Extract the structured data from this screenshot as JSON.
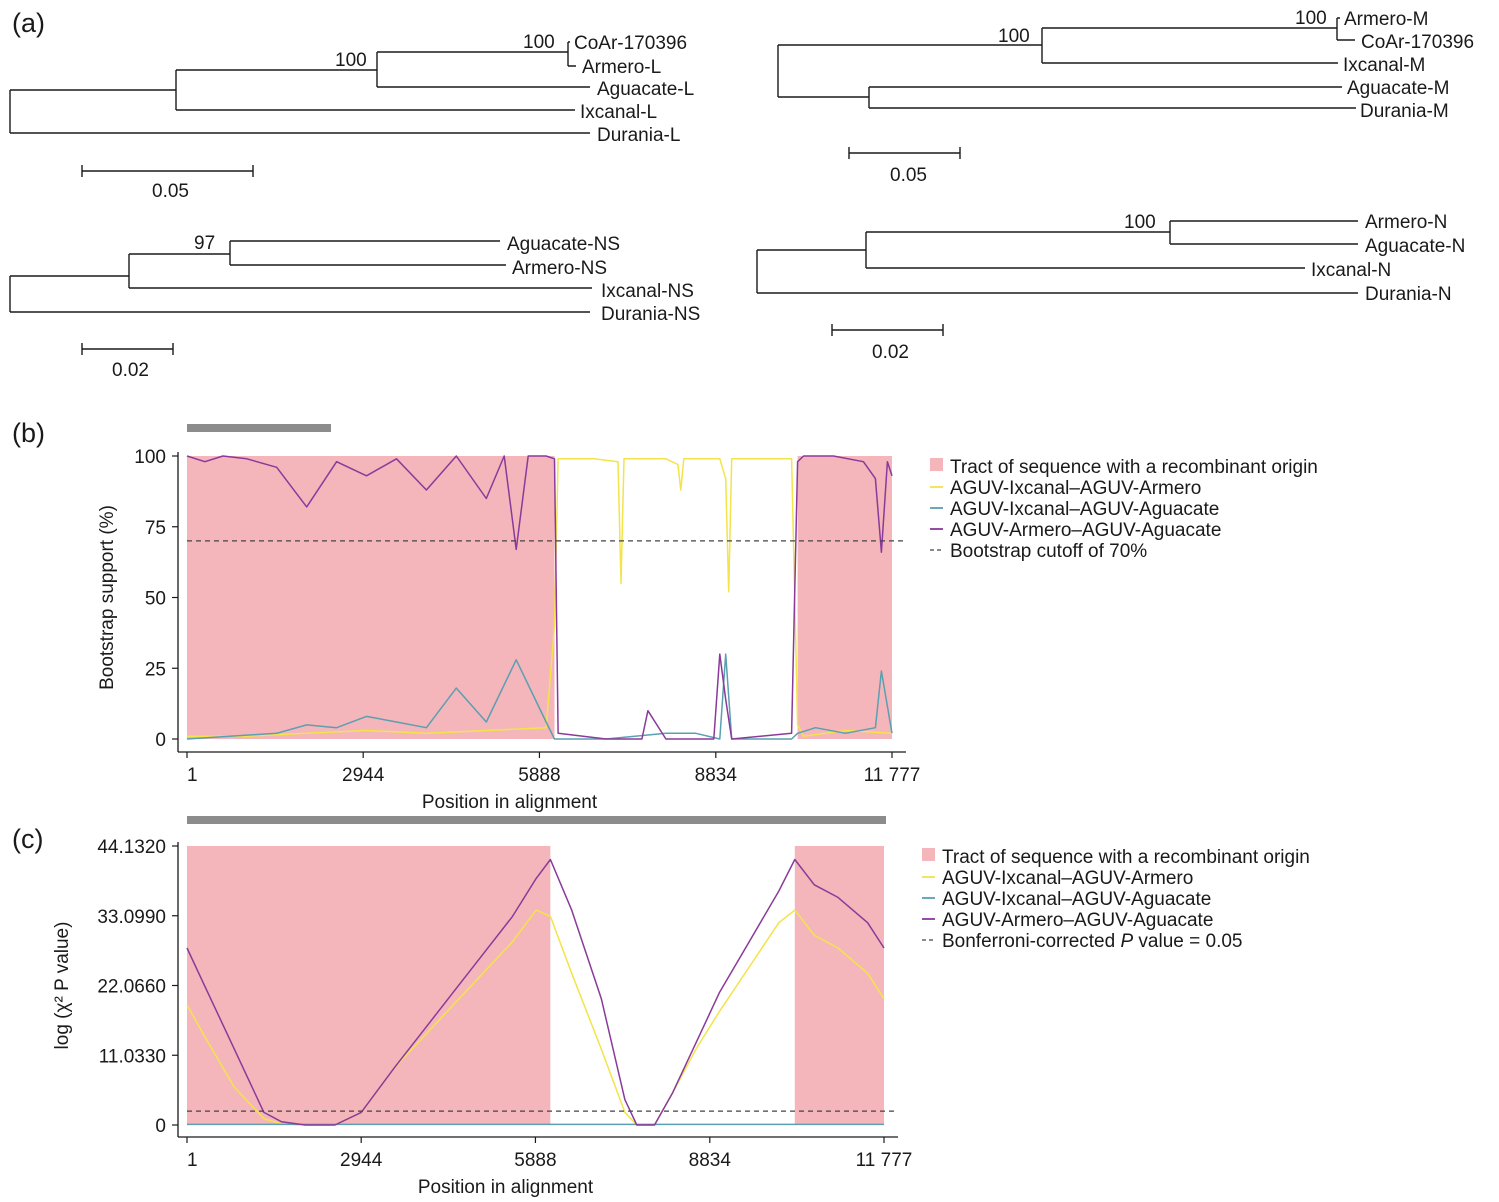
{
  "panel_labels": {
    "a": "(a)",
    "b": "(b)",
    "c": "(c)"
  },
  "trees": [
    {
      "name": "L",
      "leaves": [
        "CoAr-170396",
        "Armero-L",
        "Aguacate-L",
        "Ixcanal-L",
        "Durania-L"
      ],
      "bootstrap": [
        "100",
        "100"
      ],
      "scale_label": "0.05"
    },
    {
      "name": "M",
      "leaves": [
        "Armero-M",
        "CoAr-170396",
        "Ixcanal-M",
        "Aguacate-M",
        "Durania-M"
      ],
      "bootstrap": [
        "100",
        "100"
      ],
      "scale_label": "0.05"
    },
    {
      "name": "NS",
      "leaves": [
        "Aguacate-NS",
        "Armero-NS",
        "Ixcanal-NS",
        "Durania-NS"
      ],
      "bootstrap": [
        "97"
      ],
      "scale_label": "0.02"
    },
    {
      "name": "N",
      "leaves": [
        "Armero-N",
        "Aguacate-N",
        "Ixcanal-N",
        "Durania-N"
      ],
      "bootstrap": [
        "100"
      ],
      "scale_label": "0.02"
    }
  ],
  "chart_data": [
    {
      "type": "line",
      "panel": "b",
      "xlabel": "Position in alignment",
      "ylabel": "Bootstrap support (%)",
      "xlim": [
        1,
        11777
      ],
      "ylim": [
        0,
        100
      ],
      "x_ticks": [
        "1",
        "2944",
        "5888",
        "8834",
        "11 777"
      ],
      "x_tick_values": [
        1,
        2944,
        5888,
        8834,
        11777
      ],
      "y_ticks": [
        "0",
        "25",
        "50",
        "75",
        "100"
      ],
      "y_tick_values": [
        0,
        25,
        50,
        75,
        100
      ],
      "recombinant_tracts": [
        [
          1,
          6140
        ],
        [
          10200,
          11777
        ]
      ],
      "cutoff": 70,
      "colors": {
        "tract": "#f4b6bb",
        "ixcanal_armero": "#f2e44a",
        "ixcanal_aguacate": "#5b9fb0",
        "armero_aguacate": "#8a3a9a",
        "cutoff": "#444444"
      },
      "legend": [
        "Tract of sequence with a recombinant origin",
        "AGUV-Ixcanal–AGUV-Armero",
        "AGUV-Ixcanal–AGUV-Aguacate",
        "AGUV-Armero–AGUV-Aguacate",
        "Bootstrap cutoff of 70%"
      ],
      "series": [
        {
          "name": "AGUV-Ixcanal–AGUV-Armero",
          "x": [
            1,
            1000,
            2000,
            3000,
            4000,
            5000,
            6000,
            6140,
            6200,
            6800,
            7200,
            7250,
            7300,
            8000,
            8200,
            8250,
            8300,
            8900,
            9000,
            9050,
            9100,
            9500,
            10100,
            10200,
            10300,
            11000,
            11777
          ],
          "y": [
            1,
            1,
            2,
            3,
            2,
            3,
            4,
            40,
            99,
            99,
            98,
            55,
            99,
            99,
            97,
            88,
            99,
            99,
            92,
            52,
            99,
            99,
            99,
            5,
            1,
            3,
            2
          ]
        },
        {
          "name": "AGUV-Ixcanal–AGUV-Aguacate",
          "x": [
            1,
            1500,
            2000,
            2500,
            3000,
            3500,
            4000,
            4500,
            5000,
            5500,
            6000,
            6140,
            6300,
            7000,
            8000,
            8500,
            8900,
            9000,
            9100,
            9500,
            10100,
            10200,
            10500,
            11000,
            11500,
            11600,
            11777
          ],
          "y": [
            0,
            2,
            5,
            4,
            8,
            6,
            4,
            18,
            6,
            28,
            6,
            0,
            0,
            0,
            2,
            2,
            0,
            30,
            0,
            0,
            0,
            2,
            4,
            2,
            4,
            24,
            2
          ]
        },
        {
          "name": "AGUV-Armero–AGUV-Aguacate",
          "x": [
            1,
            300,
            600,
            1000,
            1500,
            2000,
            2500,
            3000,
            3500,
            4000,
            4500,
            5000,
            5300,
            5500,
            5700,
            6000,
            6140,
            6200,
            7000,
            7600,
            7700,
            8000,
            8800,
            8900,
            9000,
            9100,
            10100,
            10200,
            10300,
            10800,
            11300,
            11500,
            11600,
            11700,
            11777
          ],
          "y": [
            100,
            98,
            100,
            99,
            96,
            82,
            98,
            93,
            99,
            88,
            100,
            85,
            100,
            67,
            100,
            100,
            99,
            2,
            0,
            0,
            10,
            0,
            0,
            30,
            14,
            0,
            2,
            98,
            100,
            100,
            98,
            92,
            66,
            98,
            93
          ]
        }
      ]
    },
    {
      "type": "line",
      "panel": "c",
      "xlabel": "Position in alignment",
      "ylabel": "log (χ² P value)",
      "xlim": [
        1,
        11777
      ],
      "ylim": [
        0,
        44.132
      ],
      "x_ticks": [
        "1",
        "2944",
        "5888",
        "8834",
        "11 777"
      ],
      "x_tick_values": [
        1,
        2944,
        5888,
        8834,
        11777
      ],
      "y_ticks": [
        "0",
        "11.0330",
        "22.0660",
        "33.0990",
        "44.1320"
      ],
      "y_tick_values": [
        0,
        11.033,
        22.066,
        33.099,
        44.132
      ],
      "recombinant_tracts": [
        [
          1,
          6140
        ],
        [
          10270,
          11777
        ]
      ],
      "cutoff": 2.2,
      "colors": {
        "tract": "#f4b6bb",
        "ixcanal_armero": "#f2e44a",
        "ixcanal_aguacate": "#5b9fb0",
        "armero_aguacate": "#8a3a9a",
        "cutoff": "#444444"
      },
      "legend": [
        "Tract of sequence with a recombinant origin",
        "AGUV-Ixcanal–AGUV-Armero",
        "AGUV-Ixcanal–AGUV-Aguacate",
        "AGUV-Armero–AGUV-Aguacate",
        "Bonferroni-corrected",
        "P",
        "value = 0.05"
      ],
      "series": [
        {
          "name": "AGUV-Ixcanal–AGUV-Armero",
          "x": [
            1,
            300,
            800,
            1300,
            1600,
            2000,
            2500,
            2944,
            3500,
            4000,
            4500,
            5000,
            5500,
            5900,
            6140,
            6500,
            7000,
            7400,
            7600,
            7900,
            8200,
            8600,
            9000,
            9500,
            10000,
            10270,
            10600,
            11000,
            11500,
            11777
          ],
          "y": [
            19,
            14,
            6,
            1,
            0.2,
            0,
            0,
            2,
            9,
            14,
            19,
            24,
            29,
            34,
            33,
            24,
            12,
            2,
            0,
            0,
            5,
            12,
            18,
            25,
            32,
            34,
            30,
            28,
            24,
            20
          ]
        },
        {
          "name": "AGUV-Ixcanal–AGUV-Aguacate",
          "x": [
            1,
            11777
          ],
          "y": [
            0.1,
            0.1
          ]
        },
        {
          "name": "AGUV-Armero–AGUV-Aguacate",
          "x": [
            1,
            300,
            800,
            1300,
            1600,
            2000,
            2500,
            2944,
            3500,
            4000,
            4500,
            5000,
            5500,
            5900,
            6140,
            6500,
            7000,
            7400,
            7600,
            7900,
            8200,
            8600,
            9000,
            9500,
            10000,
            10270,
            10600,
            11000,
            11500,
            11777
          ],
          "y": [
            28,
            22,
            12,
            2,
            0.5,
            0,
            0,
            2,
            9,
            15,
            21,
            27,
            33,
            39,
            42,
            34,
            20,
            4,
            0,
            0,
            5,
            13,
            21,
            29,
            37,
            42,
            38,
            36,
            32,
            28
          ]
        }
      ]
    }
  ]
}
